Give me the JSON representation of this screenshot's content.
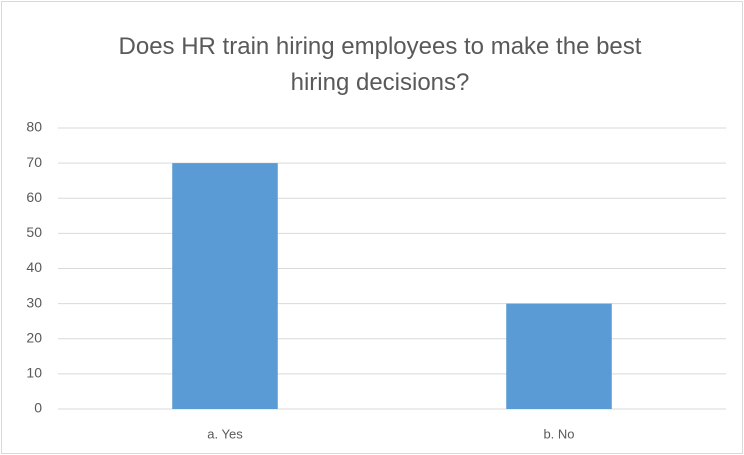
{
  "chart_data": {
    "type": "bar",
    "title": "Does HR train hiring employees to make the best hiring decisions?",
    "categories": [
      "a. Yes",
      "b. No"
    ],
    "values": [
      70,
      30
    ],
    "color": "#5b9bd5",
    "ylim": [
      0,
      80
    ],
    "yticks": [
      0,
      10,
      20,
      30,
      40,
      50,
      60,
      70,
      80
    ],
    "grid": true
  }
}
